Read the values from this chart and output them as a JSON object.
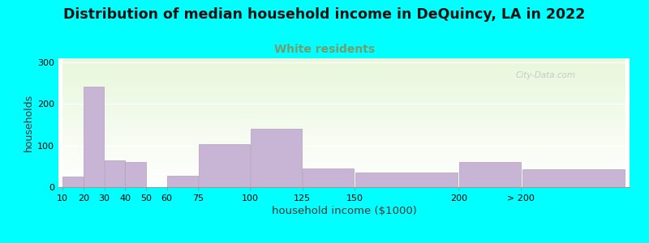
{
  "title": "Distribution of median household income in DeQuincy, LA in 2022",
  "subtitle": "White residents",
  "xlabel": "household income ($1000)",
  "ylabel": "households",
  "background_color": "#00FFFF",
  "bar_color": "#c8b4d4",
  "bar_edge_color": "#b09ec0",
  "title_fontsize": 12.5,
  "title_color": "#111111",
  "subtitle_fontsize": 10,
  "subtitle_color": "#7a9a6a",
  "ylabel_fontsize": 9,
  "xlabel_fontsize": 9.5,
  "bin_edges": [
    10,
    20,
    30,
    40,
    50,
    60,
    75,
    100,
    125,
    150,
    200,
    230,
    280
  ],
  "bar_heights": [
    25,
    242,
    65,
    60,
    0,
    28,
    103,
    140,
    45,
    35,
    60,
    42
  ],
  "tick_positions": [
    10,
    20,
    30,
    40,
    50,
    60,
    75,
    100,
    125,
    150,
    200,
    230
  ],
  "tick_labels": [
    "10",
    "20",
    "30",
    "40",
    "50",
    "60",
    "75",
    "100",
    "125",
    "150",
    "200",
    "> 200"
  ],
  "ylim": [
    0,
    310
  ],
  "yticks": [
    0,
    100,
    200,
    300
  ],
  "watermark": "City-Data.com"
}
